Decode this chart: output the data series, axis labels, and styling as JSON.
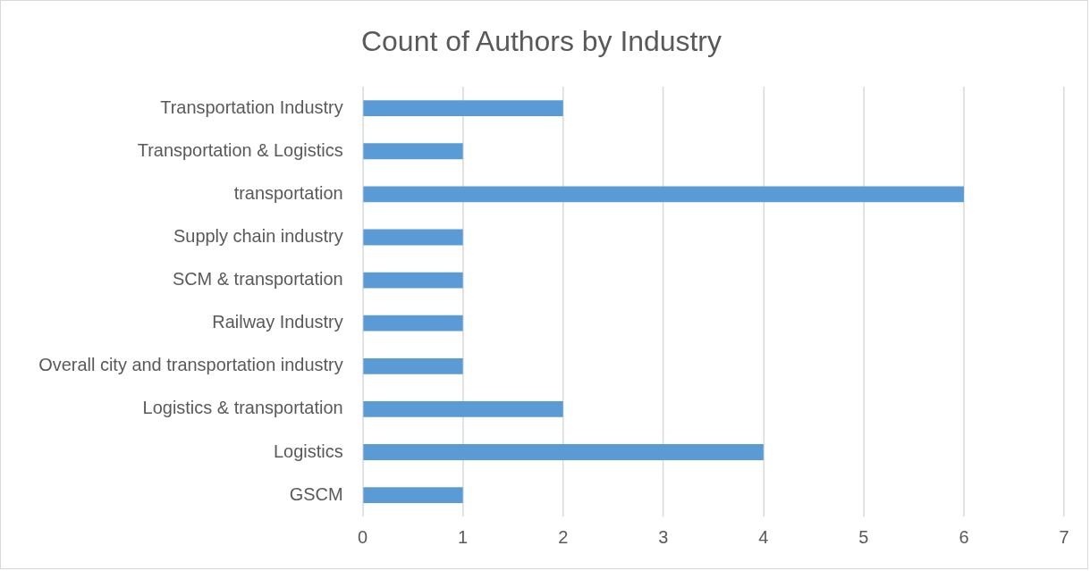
{
  "chart_data": {
    "type": "bar",
    "title": "Count of Authors by Industry",
    "orientation": "horizontal",
    "categories": [
      "Transportation Industry",
      "Transportation & Logistics",
      "transportation",
      "Supply chain industry",
      "SCM & transportation",
      "Railway Industry",
      "Overall city and transportation industry",
      "Logistics & transportation",
      "Logistics",
      "GSCM"
    ],
    "values": [
      2,
      1,
      6,
      1,
      1,
      1,
      1,
      2,
      4,
      1
    ],
    "color": "#5b9bd5",
    "xlim": [
      0,
      7
    ],
    "xticks": [
      0,
      1,
      2,
      3,
      4,
      5,
      6,
      7
    ],
    "grid": "x"
  }
}
